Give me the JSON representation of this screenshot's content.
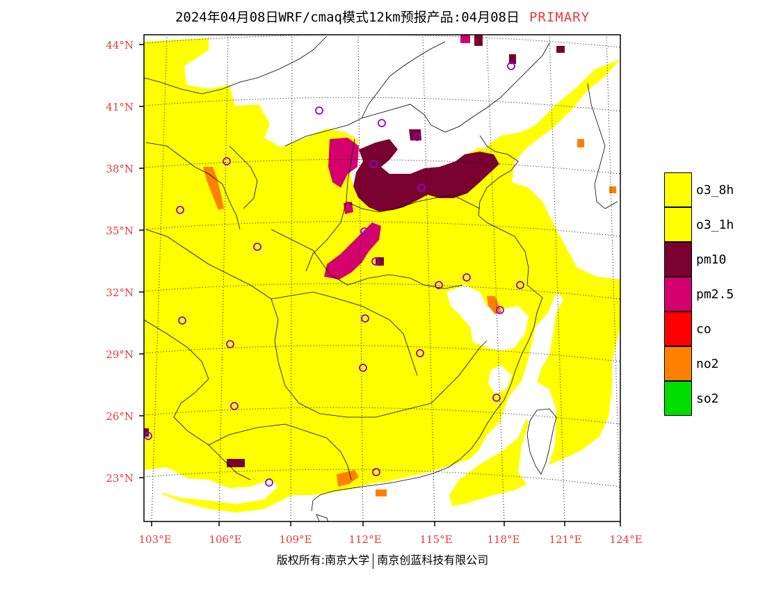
{
  "title": {
    "text": "2024年04月08日WRF/cmaq模式12km预报产品:04月08日",
    "tag": "PRIMARY"
  },
  "map": {
    "lat_labels": [
      "44°N",
      "41°N",
      "38°N",
      "35°N",
      "32°N",
      "29°N",
      "26°N",
      "23°N"
    ],
    "lon_labels": [
      "103°E",
      "106°E",
      "109°E",
      "112°E",
      "115°E",
      "118°E",
      "121°E",
      "124°E"
    ],
    "extent": {
      "lon": [
        102.8,
        124.0
      ],
      "lat": [
        20.8,
        44.5
      ]
    }
  },
  "legend": [
    {
      "label": "o3_8h",
      "color": "#ffff00"
    },
    {
      "label": "o3_1h",
      "color": "#ffff00"
    },
    {
      "label": "pm10",
      "color": "#7a0030"
    },
    {
      "label": "pm2.5",
      "color": "#d4006e"
    },
    {
      "label": "co",
      "color": "#ff0000"
    },
    {
      "label": "no2",
      "color": "#ff8000"
    },
    {
      "label": "so2",
      "color": "#00dd00"
    }
  ],
  "credit": {
    "left": "版权所有:南京大学",
    "right": "南京创蓝科技有限公司"
  }
}
